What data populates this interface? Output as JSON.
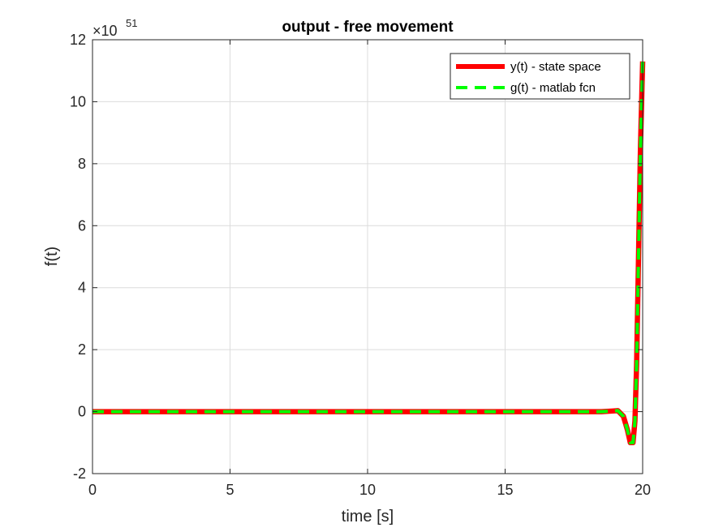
{
  "chart_data": {
    "type": "line",
    "title": "output - free movement",
    "xlabel": "time [s]",
    "ylabel": "f(t)",
    "y_multiplier_base": "×10",
    "y_multiplier_exp": "51",
    "xlim": [
      0,
      20
    ],
    "ylim": [
      -2,
      12
    ],
    "xticks": [
      0,
      5,
      10,
      15,
      20
    ],
    "xtick_labels": [
      "0",
      "5",
      "10",
      "15",
      "20"
    ],
    "yticks": [
      -2,
      0,
      2,
      4,
      6,
      8,
      10,
      12
    ],
    "ytick_labels": [
      "-2",
      "0",
      "2",
      "4",
      "6",
      "8",
      "10",
      "12"
    ],
    "grid": true,
    "legend_position": "top-right",
    "series": [
      {
        "name": "y(t) - state space",
        "color": "#ff0000",
        "style": "solid",
        "x": [
          0,
          5,
          10,
          15,
          18.5,
          18.9,
          19.1,
          19.3,
          19.45,
          19.55,
          19.65,
          19.72,
          19.78,
          19.85,
          19.92,
          20
        ],
        "y": [
          0,
          0,
          0,
          0,
          0,
          0.02,
          0.03,
          -0.15,
          -0.6,
          -1.0,
          -1.0,
          -0.3,
          1.5,
          5.0,
          8.5,
          11.3
        ]
      },
      {
        "name": "g(t) - matlab fcn",
        "color": "#00ff00",
        "style": "dashed",
        "x": [
          0,
          5,
          10,
          15,
          18.5,
          18.9,
          19.1,
          19.3,
          19.45,
          19.55,
          19.65,
          19.72,
          19.78,
          19.85,
          19.92,
          20
        ],
        "y": [
          0,
          0,
          0,
          0,
          0,
          0.02,
          0.03,
          -0.15,
          -0.6,
          -1.0,
          -1.0,
          -0.3,
          1.5,
          5.0,
          8.5,
          11.3
        ]
      }
    ]
  }
}
